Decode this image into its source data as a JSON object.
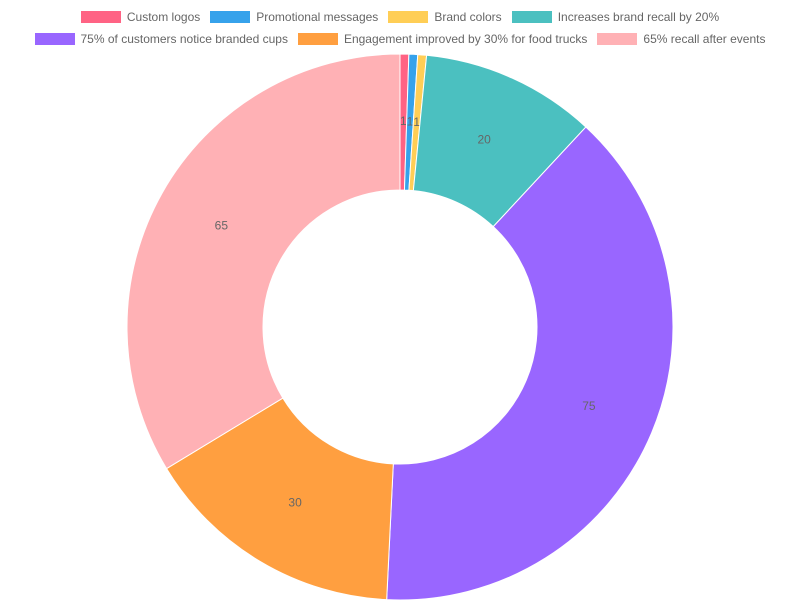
{
  "chart_data": {
    "type": "pie",
    "variant": "doughnut",
    "legend_position": "top",
    "categories": [
      "Custom logos",
      "Promotional messages",
      "Brand colors",
      "Increases brand recall by 20%",
      "75% of customers notice branded cups",
      "Engagement improved by 30% for food trucks",
      "65% recall after events"
    ],
    "values": [
      1,
      1,
      1,
      20,
      75,
      30,
      65
    ],
    "data_labels": [
      "1",
      "1",
      "1",
      "20",
      "75",
      "30",
      "65"
    ],
    "colors": [
      "#ff6384",
      "#36a2eb",
      "#ffce56",
      "#4bc0c0",
      "#9966ff",
      "#ff9f40",
      "#ffb1b5"
    ]
  }
}
